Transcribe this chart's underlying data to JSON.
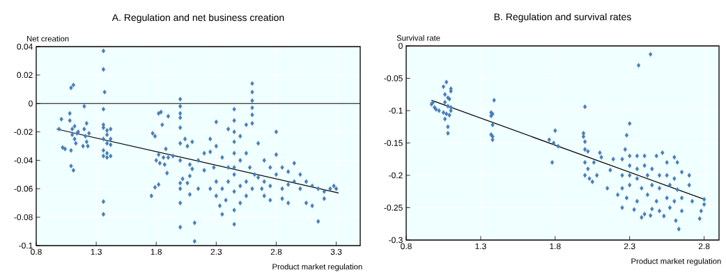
{
  "chart_data": [
    {
      "type": "scatter",
      "title": "A. Regulation and net business creation",
      "xlabel": "Product market regulation",
      "ylabel": "Net creation",
      "xlim": [
        0.8,
        3.5
      ],
      "ylim": [
        -0.1,
        0.04
      ],
      "xticks": [
        0.8,
        1.3,
        1.8,
        2.3,
        2.8,
        3.3
      ],
      "yticks": [
        -0.1,
        -0.08,
        -0.06,
        -0.04,
        -0.02,
        0,
        0.02,
        0.04
      ],
      "grid": true,
      "marker": "diamond",
      "ref_lines": [
        {
          "axis": "y",
          "value": 0,
          "color": "#000000"
        }
      ],
      "series": [
        {
          "type": "scatter",
          "color": "#4a7ebb",
          "x": [
            0.99,
            1.01,
            1.02,
            1.04,
            1.08,
            1.08,
            1.09,
            1.11,
            1.09,
            1.09,
            1.11,
            1.1,
            1.12,
            1.1,
            1.12,
            1.13,
            1.14,
            1.15,
            1.2,
            1.22,
            1.2,
            1.21,
            1.22,
            1.23,
            1.19,
            1.24,
            1.36,
            1.36,
            1.37,
            1.36,
            1.36,
            1.36,
            1.36,
            1.36,
            1.36,
            1.36,
            1.36,
            1.39,
            1.39,
            1.39,
            1.39,
            1.39,
            1.42,
            1.42,
            1.42,
            1.42,
            1.77,
            1.79,
            1.82,
            1.84,
            1.82,
            1.8,
            1.83,
            1.79,
            1.82,
            1.76,
            1.85,
            1.9,
            1.88,
            1.9,
            1.87,
            1.89,
            1.94,
            1.86,
            2.0,
            2.0,
            2.0,
            2.0,
            2.0,
            2.0,
            2.0,
            2.0,
            2.0,
            2.0,
            2.0,
            2.04,
            2.06,
            2.1,
            2.08,
            2.1,
            2.02,
            2.06,
            2.08,
            2.12,
            2.12,
            2.08,
            2.15,
            2.2,
            2.15,
            2.3,
            2.25,
            2.25,
            2.4,
            2.3,
            2.35,
            2.28,
            2.3,
            2.25,
            2.3,
            2.33,
            2.35,
            2.4,
            2.45,
            2.45,
            2.45,
            2.45,
            2.45,
            2.45,
            2.45,
            2.45,
            2.45,
            2.45,
            2.5,
            2.5,
            2.5,
            2.55,
            2.55,
            2.55,
            2.55,
            2.6,
            2.6,
            2.6,
            2.6,
            2.6,
            2.6,
            2.58,
            2.6,
            2.65,
            2.65,
            2.7,
            2.7,
            2.7,
            2.75,
            2.75,
            2.8,
            2.8,
            2.8,
            2.85,
            2.85,
            2.9,
            2.9,
            2.9,
            2.95,
            2.95,
            3.0,
            3.0,
            3.05,
            3.05,
            3.1,
            3.1,
            3.15,
            3.2,
            3.2,
            3.15,
            3.25,
            3.28,
            3.3,
            2.2,
            2.4,
            2.5,
            2.35,
            2.62,
            2.68,
            2.38,
            2.75,
            2.85
          ],
          "values": [
            -0.018,
            -0.011,
            -0.031,
            -0.032,
            -0.007,
            -0.012,
            0.011,
            0.013,
            -0.033,
            -0.044,
            -0.047,
            -0.018,
            -0.016,
            -0.022,
            -0.025,
            -0.028,
            -0.021,
            -0.02,
            -0.002,
            -0.014,
            -0.018,
            -0.023,
            -0.027,
            -0.03,
            -0.03,
            -0.021,
            0.037,
            0.024,
            0.008,
            -0.004,
            -0.015,
            -0.017,
            -0.025,
            -0.033,
            -0.037,
            -0.069,
            -0.078,
            -0.019,
            -0.022,
            -0.028,
            -0.035,
            -0.038,
            -0.018,
            -0.025,
            -0.029,
            -0.037,
            -0.021,
            -0.023,
            -0.007,
            -0.006,
            -0.036,
            -0.04,
            -0.042,
            -0.059,
            -0.057,
            -0.065,
            -0.015,
            -0.009,
            -0.032,
            -0.038,
            -0.043,
            -0.049,
            -0.037,
            -0.038,
            0.003,
            -0.002,
            -0.007,
            -0.01,
            -0.017,
            -0.028,
            -0.04,
            -0.056,
            -0.06,
            -0.07,
            -0.087,
            -0.025,
            -0.03,
            -0.027,
            -0.043,
            -0.046,
            -0.053,
            -0.056,
            -0.064,
            -0.084,
            -0.097,
            -0.051,
            -0.04,
            -0.047,
            -0.06,
            -0.013,
            -0.025,
            -0.034,
            -0.018,
            -0.03,
            -0.038,
            -0.045,
            -0.055,
            -0.06,
            -0.065,
            -0.072,
            -0.078,
            -0.055,
            -0.004,
            -0.012,
            -0.02,
            -0.027,
            -0.035,
            -0.045,
            -0.05,
            -0.062,
            -0.075,
            -0.085,
            -0.07,
            -0.04,
            -0.023,
            -0.015,
            -0.035,
            -0.055,
            -0.065,
            0.014,
            0.008,
            0.002,
            -0.003,
            -0.008,
            -0.014,
            -0.045,
            -0.06,
            -0.028,
            -0.052,
            -0.04,
            -0.055,
            -0.065,
            -0.045,
            -0.058,
            -0.02,
            -0.036,
            -0.05,
            -0.045,
            -0.06,
            -0.048,
            -0.057,
            -0.07,
            -0.042,
            -0.055,
            -0.05,
            -0.06,
            -0.055,
            -0.07,
            -0.058,
            -0.072,
            -0.06,
            -0.062,
            -0.067,
            -0.083,
            -0.06,
            -0.058,
            -0.06,
            -0.035,
            -0.045,
            -0.058,
            -0.06,
            -0.05,
            -0.06,
            -0.068,
            -0.068,
            -0.067
          ]
        },
        {
          "type": "line",
          "color": "#000000",
          "marker": "none",
          "x": [
            0.97,
            3.32
          ],
          "values": [
            -0.018,
            -0.063
          ]
        }
      ]
    },
    {
      "type": "scatter",
      "title": "B. Regulation and survival rates",
      "xlabel": "Product market regulation",
      "ylabel": "Survival rate",
      "xlim": [
        0.8,
        2.9
      ],
      "ylim": [
        -0.3,
        0
      ],
      "xticks": [
        0.8,
        1.3,
        1.8,
        2.3,
        2.8
      ],
      "yticks": [
        -0.3,
        -0.25,
        -0.2,
        -0.15,
        -0.1,
        -0.05,
        0
      ],
      "grid": true,
      "marker": "diamond",
      "series": [
        {
          "type": "scatter",
          "color": "#4a7ebb",
          "x": [
            0.97,
            0.98,
            0.99,
            1.0,
            1.02,
            1.05,
            1.07,
            1.06,
            1.08,
            1.1,
            1.1,
            1.09,
            1.06,
            1.08,
            1.1,
            1.05,
            1.07,
            1.09,
            1.06,
            1.08,
            1.08,
            1.1,
            1.39,
            1.37,
            1.38,
            1.37,
            1.38,
            1.37,
            1.38,
            1.38,
            1.76,
            1.8,
            1.79,
            1.82,
            1.78,
            2.0,
            1.99,
            1.99,
            2.0,
            2.0,
            2.02,
            2.0,
            2.02,
            2.0,
            2.03,
            2.05,
            2.06,
            2.08,
            2.1,
            2.11,
            2.15,
            2.17,
            2.3,
            2.28,
            2.36,
            2.44,
            2.27,
            2.3,
            2.25,
            2.35,
            2.4,
            2.48,
            2.52,
            2.3,
            2.35,
            2.4,
            2.45,
            2.55,
            2.6,
            2.62,
            2.25,
            2.3,
            2.35,
            2.42,
            2.5,
            2.55,
            2.6,
            2.65,
            2.7,
            2.25,
            2.3,
            2.38,
            2.45,
            2.5,
            2.57,
            2.62,
            2.7,
            2.22,
            2.28,
            2.35,
            2.42,
            2.48,
            2.55,
            2.6,
            2.65,
            2.72,
            2.8,
            2.8,
            2.78,
            2.25,
            2.33,
            2.4,
            2.45,
            2.5,
            2.57,
            2.65,
            2.38,
            2.44,
            2.61,
            2.53,
            2.63,
            2.77,
            2.19
          ],
          "values": [
            -0.09,
            -0.087,
            -0.095,
            -0.098,
            -0.1,
            -0.063,
            -0.056,
            -0.075,
            -0.08,
            -0.066,
            -0.07,
            -0.082,
            -0.087,
            -0.093,
            -0.095,
            -0.103,
            -0.105,
            -0.107,
            -0.113,
            -0.125,
            -0.135,
            -0.1,
            -0.084,
            -0.103,
            -0.105,
            -0.108,
            -0.122,
            -0.137,
            -0.14,
            -0.145,
            -0.145,
            -0.131,
            -0.15,
            -0.155,
            -0.18,
            -0.094,
            -0.135,
            -0.14,
            -0.148,
            -0.16,
            -0.163,
            -0.18,
            -0.19,
            -0.2,
            -0.205,
            -0.21,
            -0.18,
            -0.2,
            -0.165,
            -0.172,
            -0.22,
            -0.192,
            -0.12,
            -0.138,
            -0.03,
            -0.013,
            -0.16,
            -0.17,
            -0.175,
            -0.17,
            -0.17,
            -0.17,
            -0.165,
            -0.185,
            -0.19,
            -0.185,
            -0.19,
            -0.18,
            -0.172,
            -0.18,
            -0.2,
            -0.2,
            -0.205,
            -0.2,
            -0.2,
            -0.2,
            -0.205,
            -0.195,
            -0.2,
            -0.22,
            -0.215,
            -0.22,
            -0.215,
            -0.22,
            -0.215,
            -0.222,
            -0.215,
            -0.23,
            -0.235,
            -0.24,
            -0.23,
            -0.24,
            -0.235,
            -0.24,
            -0.235,
            -0.24,
            -0.237,
            -0.245,
            -0.255,
            -0.25,
            -0.253,
            -0.26,
            -0.252,
            -0.255,
            -0.25,
            -0.255,
            -0.265,
            -0.262,
            -0.27,
            -0.263,
            -0.283,
            -0.267,
            -0.175
          ]
        },
        {
          "type": "line",
          "color": "#000000",
          "marker": "none",
          "x": [
            0.97,
            2.8
          ],
          "values": [
            -0.084,
            -0.237
          ]
        }
      ]
    }
  ]
}
